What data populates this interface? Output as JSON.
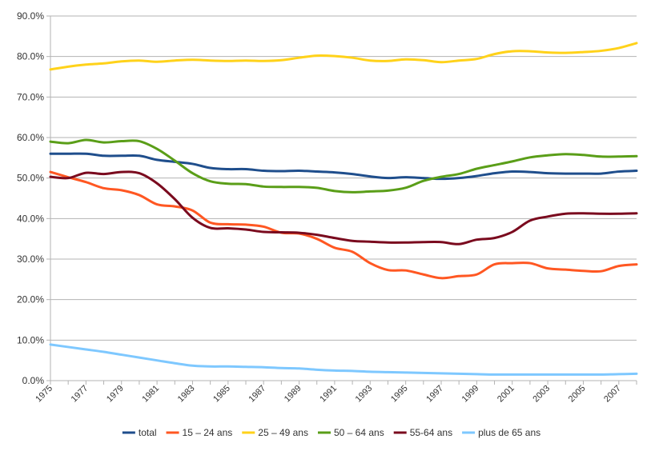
{
  "chart_data": {
    "type": "line",
    "title": "",
    "xlabel": "",
    "ylabel": "",
    "x": [
      1975,
      1976,
      1977,
      1978,
      1979,
      1980,
      1981,
      1982,
      1983,
      1984,
      1985,
      1986,
      1987,
      1988,
      1989,
      1990,
      1991,
      1992,
      1993,
      1994,
      1995,
      1996,
      1997,
      1998,
      1999,
      2000,
      2001,
      2002,
      2003,
      2004,
      2005,
      2006,
      2007,
      2008
    ],
    "x_tick_labels": [
      "1975",
      "1977",
      "1979",
      "1981",
      "1983",
      "1985",
      "1987",
      "1989",
      "1991",
      "1993",
      "1995",
      "1997",
      "1999",
      "2001",
      "2003",
      "2005",
      "2007"
    ],
    "y_tick_labels": [
      "0.0%",
      "10.0%",
      "20.0%",
      "30.0%",
      "40.0%",
      "50.0%",
      "60.0%",
      "70.0%",
      "80.0%",
      "90.0%"
    ],
    "ylim": [
      0,
      0.9
    ],
    "y_format": "percent",
    "grid": true,
    "legend_position": "bottom",
    "series": [
      {
        "name": "total",
        "color": "#1f4e8c",
        "values": [
          0.56,
          0.56,
          0.56,
          0.555,
          0.555,
          0.555,
          0.545,
          0.54,
          0.535,
          0.525,
          0.522,
          0.522,
          0.518,
          0.517,
          0.518,
          0.516,
          0.514,
          0.51,
          0.504,
          0.5,
          0.502,
          0.5,
          0.498,
          0.5,
          0.505,
          0.512,
          0.516,
          0.515,
          0.512,
          0.511,
          0.511,
          0.511,
          0.516,
          0.518
        ]
      },
      {
        "name": "15 – 24 ans",
        "color": "#ff5722",
        "values": [
          0.515,
          0.502,
          0.49,
          0.475,
          0.47,
          0.458,
          0.435,
          0.43,
          0.42,
          0.39,
          0.386,
          0.385,
          0.38,
          0.365,
          0.363,
          0.35,
          0.328,
          0.318,
          0.29,
          0.273,
          0.272,
          0.262,
          0.253,
          0.258,
          0.262,
          0.287,
          0.29,
          0.29,
          0.277,
          0.274,
          0.271,
          0.27,
          0.283,
          0.287
        ]
      },
      {
        "name": "25 – 49 ans",
        "color": "#ffd21a",
        "values": [
          0.768,
          0.775,
          0.78,
          0.783,
          0.788,
          0.79,
          0.787,
          0.79,
          0.792,
          0.79,
          0.789,
          0.79,
          0.789,
          0.791,
          0.797,
          0.802,
          0.801,
          0.797,
          0.79,
          0.789,
          0.793,
          0.791,
          0.786,
          0.79,
          0.794,
          0.806,
          0.813,
          0.813,
          0.81,
          0.809,
          0.811,
          0.814,
          0.821,
          0.833
        ]
      },
      {
        "name": "50 – 64 ans",
        "color": "#5a9e18",
        "values": [
          0.59,
          0.586,
          0.594,
          0.588,
          0.591,
          0.591,
          0.572,
          0.543,
          0.512,
          0.492,
          0.486,
          0.485,
          0.479,
          0.478,
          0.478,
          0.476,
          0.468,
          0.465,
          0.467,
          0.469,
          0.476,
          0.493,
          0.503,
          0.51,
          0.523,
          0.532,
          0.541,
          0.551,
          0.556,
          0.559,
          0.557,
          0.553,
          0.553,
          0.554
        ]
      },
      {
        "name": "55-64 ans",
        "color": "#7a0a1e",
        "values": [
          0.503,
          0.5,
          0.513,
          0.51,
          0.515,
          0.512,
          0.487,
          0.448,
          0.402,
          0.377,
          0.376,
          0.373,
          0.367,
          0.366,
          0.365,
          0.36,
          0.352,
          0.345,
          0.343,
          0.341,
          0.341,
          0.342,
          0.342,
          0.337,
          0.348,
          0.352,
          0.367,
          0.395,
          0.405,
          0.412,
          0.413,
          0.412,
          0.412,
          0.413
        ]
      },
      {
        "name": "plus de 65 ans",
        "color": "#7ec8ff",
        "values": [
          0.089,
          0.083,
          0.077,
          0.071,
          0.064,
          0.057,
          0.05,
          0.043,
          0.037,
          0.035,
          0.035,
          0.034,
          0.033,
          0.031,
          0.03,
          0.027,
          0.025,
          0.024,
          0.022,
          0.021,
          0.02,
          0.019,
          0.018,
          0.017,
          0.016,
          0.015,
          0.015,
          0.015,
          0.015,
          0.015,
          0.015,
          0.015,
          0.016,
          0.017
        ]
      }
    ]
  }
}
